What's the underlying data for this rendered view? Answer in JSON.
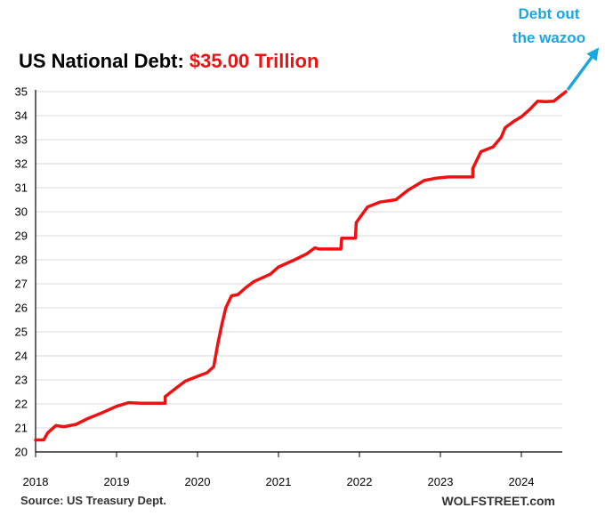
{
  "chart_data": {
    "type": "line",
    "title": "US National Debt: ",
    "title_value": "$35.00 Trillion",
    "annotation": [
      "Debt out",
      "the wazoo"
    ],
    "source": "Source: US Treasury Dept.",
    "brand": "WOLFSTREET.com",
    "xlim": [
      2018,
      2024.6
    ],
    "ylim": [
      20,
      35
    ],
    "x_ticks": [
      "2018",
      "2019",
      "2020",
      "2021",
      "2022",
      "2023",
      "2024"
    ],
    "y_ticks": [
      "20",
      "21",
      "22",
      "23",
      "24",
      "25",
      "26",
      "27",
      "28",
      "29",
      "30",
      "31",
      "32",
      "33",
      "34",
      "35"
    ],
    "grid": "horizontal",
    "colors": {
      "line": "#ee1111",
      "title_value": "#ee1111",
      "annotation": "#1aa7e0",
      "grid": "#d9d9d9"
    },
    "series": [
      {
        "name": "",
        "x": [
          2018.0,
          2018.1,
          2018.15,
          2018.25,
          2018.35,
          2018.5,
          2018.65,
          2018.8,
          2019.0,
          2019.15,
          2019.3,
          2019.6,
          2019.6,
          2019.75,
          2019.85,
          2020.0,
          2020.12,
          2020.2,
          2020.25,
          2020.3,
          2020.35,
          2020.42,
          2020.5,
          2020.6,
          2020.7,
          2020.9,
          2021.0,
          2021.2,
          2021.35,
          2021.45,
          2021.5,
          2021.55,
          2021.77,
          2021.78,
          2021.95,
          2021.96,
          2022.1,
          2022.25,
          2022.45,
          2022.6,
          2022.8,
          2022.95,
          2023.1,
          2023.4,
          2023.4,
          2023.5,
          2023.65,
          2023.75,
          2023.8,
          2023.9,
          2024.0,
          2024.1,
          2024.2,
          2024.3,
          2024.4,
          2024.55
        ],
        "y": [
          20.5,
          20.5,
          20.8,
          21.1,
          21.05,
          21.15,
          21.4,
          21.6,
          21.9,
          22.05,
          22.03,
          22.03,
          22.3,
          22.7,
          22.95,
          23.15,
          23.3,
          23.55,
          24.5,
          25.3,
          26.0,
          26.5,
          26.55,
          26.85,
          27.1,
          27.4,
          27.7,
          28.0,
          28.25,
          28.5,
          28.45,
          28.45,
          28.45,
          28.9,
          28.9,
          29.55,
          30.2,
          30.4,
          30.5,
          30.9,
          31.3,
          31.4,
          31.45,
          31.45,
          31.8,
          32.5,
          32.7,
          33.1,
          33.5,
          33.75,
          33.95,
          34.25,
          34.6,
          34.58,
          34.6,
          35.0
        ]
      }
    ]
  }
}
